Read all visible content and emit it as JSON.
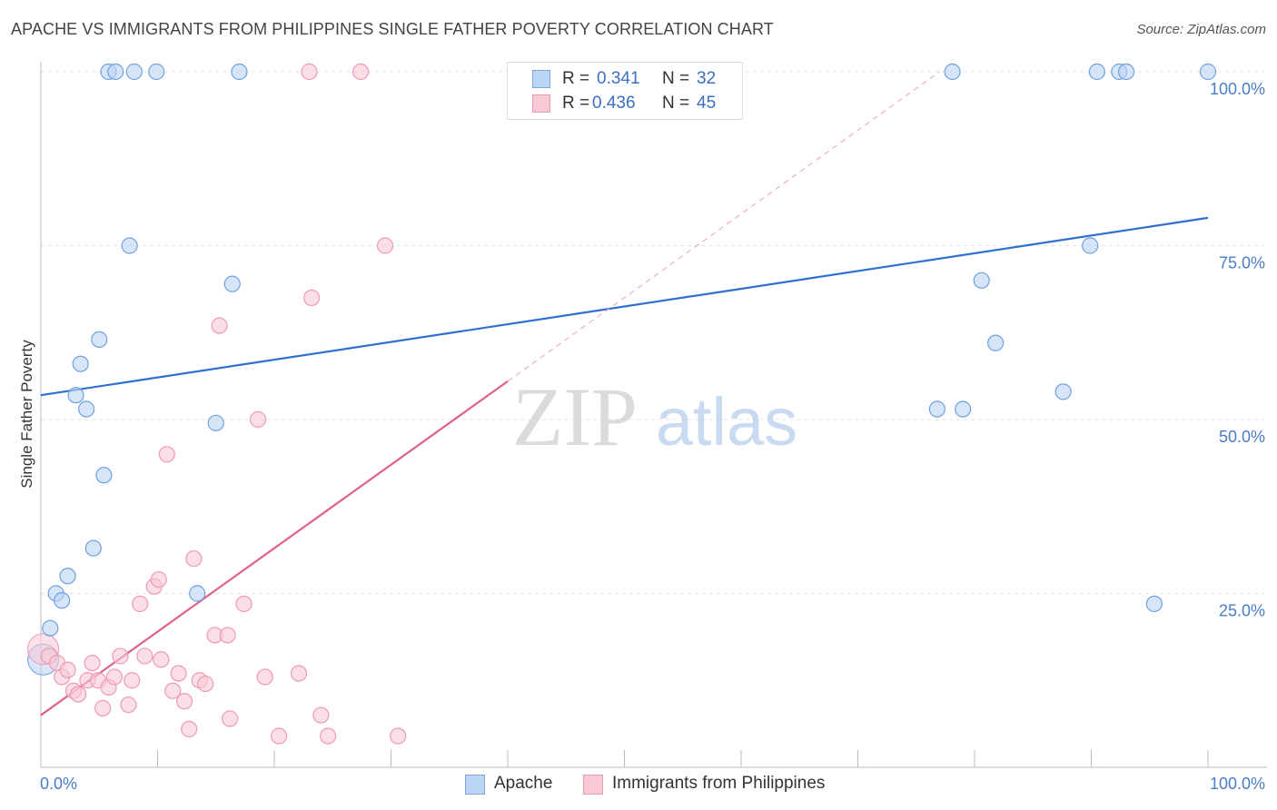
{
  "title": "APACHE VS IMMIGRANTS FROM PHILIPPINES SINGLE FATHER POVERTY CORRELATION CHART",
  "source": "Source: ZipAtlas.com",
  "watermark": {
    "zip": "ZIP",
    "atlas": "atlas"
  },
  "legend": {
    "r_label": "R =",
    "n_label": "N =",
    "entries": [
      {
        "r": "0.341",
        "n": "32",
        "fill": "#bcd4f5",
        "stroke": "#7ea6e0"
      },
      {
        "r": "0.436",
        "n": "45",
        "fill": "#f9c9d6",
        "stroke": "#ee9ab4"
      }
    ]
  },
  "bottom_legend": [
    {
      "label": "Apache",
      "fill": "#bcd4f5",
      "stroke": "#7ea6e0"
    },
    {
      "label": "Immigrants from Philippines",
      "fill": "#f9c9d6",
      "stroke": "#ee9ab4"
    }
  ],
  "chart_data": {
    "type": "scatter",
    "title": "APACHE VS IMMIGRANTS FROM PHILIPPINES SINGLE FATHER POVERTY CORRELATION CHART",
    "xlabel": "",
    "ylabel": "Single Father Poverty",
    "xlim": [
      0,
      100
    ],
    "ylim": [
      0,
      100
    ],
    "x_tick_labels": [
      "0.0%",
      "100.0%"
    ],
    "y_tick_labels": [
      "25.0%",
      "50.0%",
      "75.0%",
      "100.0%"
    ],
    "y_ticks": [
      25,
      50,
      75,
      100
    ],
    "grid": true,
    "legend_position": "top-center",
    "series": [
      {
        "name": "Apache",
        "color": "#6fa0e0",
        "fill": "#bcd4f5",
        "line_color": "#2f6fd0",
        "trend": {
          "x": [
            0,
            100
          ],
          "y": [
            53.5,
            79.0
          ]
        },
        "points": [
          [
            0.2,
            15.5
          ],
          [
            0.8,
            20
          ],
          [
            1.3,
            25
          ],
          [
            1.8,
            24
          ],
          [
            2.3,
            27.5
          ],
          [
            3.0,
            53.5
          ],
          [
            3.4,
            58
          ],
          [
            3.9,
            51.5
          ],
          [
            4.5,
            31.5
          ],
          [
            5.0,
            61.5
          ],
          [
            5.4,
            42
          ],
          [
            5.8,
            100
          ],
          [
            6.4,
            100
          ],
          [
            7.6,
            75
          ],
          [
            8.0,
            100
          ],
          [
            9.9,
            100
          ],
          [
            13.4,
            25
          ],
          [
            15.0,
            49.5
          ],
          [
            16.4,
            69.5
          ],
          [
            17.0,
            100
          ],
          [
            76.8,
            51.5
          ],
          [
            78.1,
            100
          ],
          [
            79.0,
            51.5
          ],
          [
            80.6,
            70
          ],
          [
            81.8,
            61
          ],
          [
            87.6,
            54
          ],
          [
            89.9,
            75
          ],
          [
            90.5,
            100
          ],
          [
            92.4,
            100
          ],
          [
            93.0,
            100
          ],
          [
            95.4,
            23.5
          ],
          [
            100,
            100
          ]
        ]
      },
      {
        "name": "Immigrants from Philippines",
        "color": "#ee9ab4",
        "fill": "#f9c9d6",
        "line_color": "#e0608c",
        "trend": {
          "x": [
            0,
            40
          ],
          "y": [
            7.5,
            55.5
          ]
        },
        "trend_ext": {
          "x": [
            40,
            77
          ],
          "y": [
            55.5,
            100
          ]
        },
        "points": [
          [
            0.2,
            17
          ],
          [
            0.7,
            16
          ],
          [
            1.4,
            15
          ],
          [
            1.8,
            13
          ],
          [
            2.3,
            14
          ],
          [
            2.8,
            11
          ],
          [
            3.2,
            10.5
          ],
          [
            4.0,
            12.5
          ],
          [
            4.4,
            15
          ],
          [
            4.9,
            12.5
          ],
          [
            5.3,
            8.5
          ],
          [
            5.8,
            11.5
          ],
          [
            6.3,
            13
          ],
          [
            6.8,
            16
          ],
          [
            7.5,
            9
          ],
          [
            7.8,
            12.5
          ],
          [
            8.5,
            23.5
          ],
          [
            8.9,
            16
          ],
          [
            9.7,
            26
          ],
          [
            10.1,
            27
          ],
          [
            10.3,
            15.5
          ],
          [
            10.8,
            45
          ],
          [
            11.3,
            11
          ],
          [
            11.8,
            13.5
          ],
          [
            12.3,
            9.5
          ],
          [
            12.7,
            5.5
          ],
          [
            13.1,
            30
          ],
          [
            13.6,
            12.5
          ],
          [
            14.1,
            12
          ],
          [
            14.9,
            19
          ],
          [
            15.3,
            63.5
          ],
          [
            16.0,
            19
          ],
          [
            16.2,
            7
          ],
          [
            17.4,
            23.5
          ],
          [
            18.6,
            50
          ],
          [
            19.2,
            13
          ],
          [
            20.4,
            4.5
          ],
          [
            22.1,
            13.5
          ],
          [
            23.0,
            100
          ],
          [
            23.2,
            67.5
          ],
          [
            24.0,
            7.5
          ],
          [
            24.6,
            4.5
          ],
          [
            27.4,
            100
          ],
          [
            29.5,
            75
          ],
          [
            30.6,
            4.5
          ]
        ]
      }
    ]
  }
}
